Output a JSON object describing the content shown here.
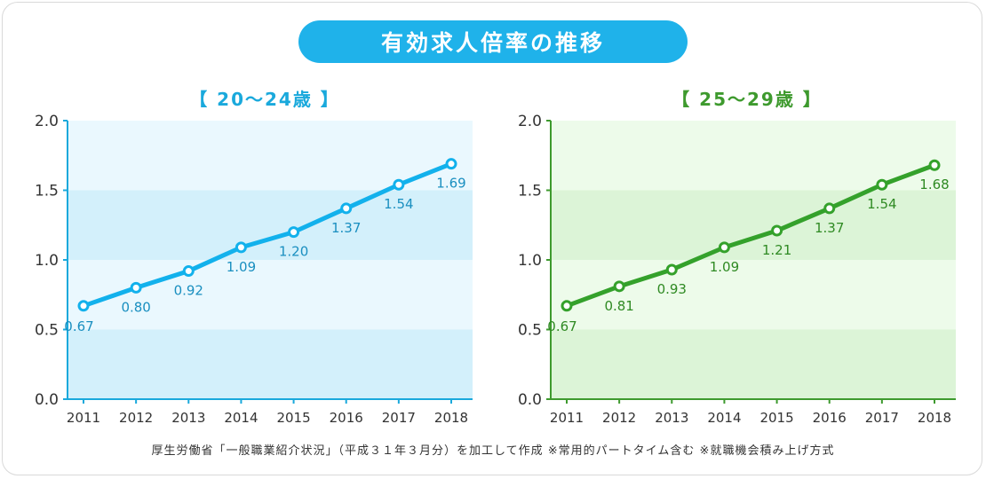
{
  "header": {
    "title": "有効求人倍率の推移",
    "title_bg_color": "#1fb2ea"
  },
  "chart_data": [
    {
      "type": "line",
      "title": "【 20～24歳 】",
      "x": [
        "2011",
        "2012",
        "2013",
        "2014",
        "2015",
        "2016",
        "2017",
        "2018"
      ],
      "y_ticks": [
        "0.0",
        "0.5",
        "1.0",
        "1.5",
        "2.0"
      ],
      "ylim": [
        0,
        2
      ],
      "series": [
        {
          "values": [
            0.67,
            0.8,
            0.92,
            1.09,
            1.2,
            1.37,
            1.54,
            1.69
          ],
          "labels": [
            "0.67",
            "0.80",
            "0.92",
            "1.09",
            "1.20",
            "1.37",
            "1.54",
            "1.69"
          ]
        }
      ],
      "grid": "alternating-bands",
      "colors": {
        "line": "#12b1ec",
        "band_dark": "#d3f0fb",
        "band_light": "#eaf8fe",
        "axis": "#1aa9dc",
        "text": "#1a8fc0"
      }
    },
    {
      "type": "line",
      "title": "【 25～29歳 】",
      "x": [
        "2011",
        "2012",
        "2013",
        "2014",
        "2015",
        "2016",
        "2017",
        "2018"
      ],
      "y_ticks": [
        "0.0",
        "0.5",
        "1.0",
        "1.5",
        "2.0"
      ],
      "ylim": [
        0,
        2
      ],
      "series": [
        {
          "values": [
            0.67,
            0.81,
            0.93,
            1.09,
            1.21,
            1.37,
            1.54,
            1.68
          ],
          "labels": [
            "0.67",
            "0.81",
            "0.93",
            "1.09",
            "1.21",
            "1.37",
            "1.54",
            "1.68"
          ]
        }
      ],
      "grid": "alternating-bands",
      "colors": {
        "line": "#34a12b",
        "band_dark": "#dcf4d7",
        "band_light": "#edfbea",
        "axis": "#3e9a2e",
        "text": "#2f8a23"
      }
    }
  ],
  "footer": {
    "source": "厚生労働省「一般職業紹介状況」（平成３１年３月分）を加工して作成 ※常用的パートタイム含む ※就職機会積み上げ方式"
  }
}
